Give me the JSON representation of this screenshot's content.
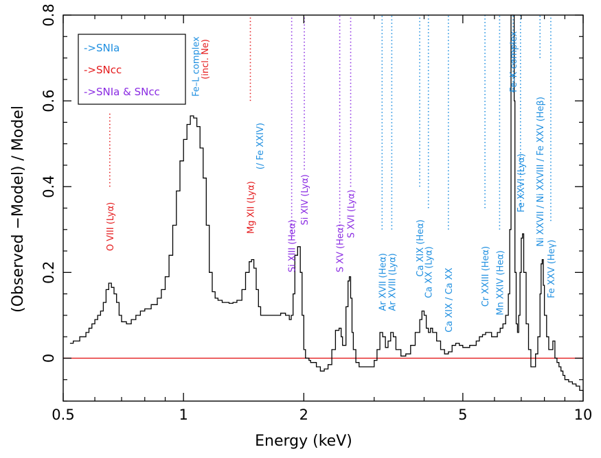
{
  "chart_data": {
    "type": "line",
    "xlabel": "Energy (keV)",
    "ylabel": "(Observed −Model) / Model",
    "x_scale": "log",
    "xlim": [
      0.5,
      10
    ],
    "ylim": [
      -0.1,
      0.8
    ],
    "x_ticks": [
      {
        "value": 0.5,
        "label": "0.5"
      },
      {
        "value": 1,
        "label": "1"
      },
      {
        "value": 2,
        "label": "2"
      },
      {
        "value": 5,
        "label": "5"
      },
      {
        "value": 10,
        "label": "10"
      }
    ],
    "y_ticks": [
      {
        "value": 0,
        "label": "0"
      },
      {
        "value": 0.2,
        "label": "0.2"
      },
      {
        "value": 0.4,
        "label": "0.4"
      },
      {
        "value": 0.6,
        "label": "0.6"
      },
      {
        "value": 0.8,
        "label": "0.8"
      }
    ],
    "zero_line": {
      "y": 0,
      "color": "#e41a1c"
    },
    "colors": {
      "SNIa": "#1f8fe0",
      "SNcc": "#e41a1c",
      "mixed": "#8a2be2",
      "data": "#000000"
    },
    "legend": {
      "placement": "top-left",
      "entries": [
        {
          "label": "->SNIa",
          "group": "SNIa"
        },
        {
          "label": "->SNcc",
          "group": "SNcc"
        },
        {
          "label": "->SNIa & SNcc",
          "group": "mixed"
        }
      ]
    },
    "series": [
      {
        "x": [
          0.52,
          0.53,
          0.55,
          0.57,
          0.58,
          0.59,
          0.6,
          0.61,
          0.62,
          0.63,
          0.64,
          0.65,
          0.66,
          0.67,
          0.68,
          0.69,
          0.7,
          0.72,
          0.74,
          0.76,
          0.78,
          0.8,
          0.83,
          0.86,
          0.88,
          0.9,
          0.92,
          0.94,
          0.96,
          0.98,
          1.0,
          1.02,
          1.04,
          1.06,
          1.08,
          1.1,
          1.12,
          1.14,
          1.16,
          1.18,
          1.2,
          1.22,
          1.25,
          1.28,
          1.3,
          1.33,
          1.36,
          1.4,
          1.43,
          1.46,
          1.48,
          1.5,
          1.52,
          1.54,
          1.56,
          1.6,
          1.65,
          1.7,
          1.75,
          1.8,
          1.84,
          1.86,
          1.88,
          1.9,
          1.93,
          1.96,
          1.98,
          2.0,
          2.02,
          2.04,
          2.06,
          2.08,
          2.1,
          2.15,
          2.2,
          2.25,
          2.3,
          2.35,
          2.4,
          2.45,
          2.48,
          2.5,
          2.55,
          2.58,
          2.6,
          2.62,
          2.64,
          2.66,
          2.7,
          2.75,
          2.8,
          2.9,
          3.0,
          3.05,
          3.1,
          3.15,
          3.2,
          3.25,
          3.3,
          3.35,
          3.4,
          3.5,
          3.6,
          3.7,
          3.8,
          3.9,
          3.95,
          4.0,
          4.05,
          4.1,
          4.15,
          4.2,
          4.3,
          4.4,
          4.5,
          4.6,
          4.7,
          4.8,
          4.9,
          5.0,
          5.2,
          5.4,
          5.5,
          5.6,
          5.7,
          5.8,
          5.9,
          6.0,
          6.1,
          6.2,
          6.3,
          6.4,
          6.5,
          6.55,
          6.6,
          6.65,
          6.7,
          6.72,
          6.75,
          6.8,
          6.85,
          6.9,
          6.95,
          7.0,
          7.05,
          7.1,
          7.2,
          7.3,
          7.4,
          7.5,
          7.6,
          7.7,
          7.8,
          7.85,
          7.9,
          7.95,
          8.0,
          8.1,
          8.2,
          8.3,
          8.4,
          8.5,
          8.6,
          8.7,
          8.8,
          8.9,
          9.0,
          9.2,
          9.4,
          9.6,
          9.8,
          10.0
        ],
        "y": [
          0.035,
          0.04,
          0.05,
          0.06,
          0.07,
          0.08,
          0.09,
          0.1,
          0.11,
          0.13,
          0.16,
          0.175,
          0.165,
          0.15,
          0.13,
          0.1,
          0.085,
          0.08,
          0.09,
          0.1,
          0.11,
          0.115,
          0.125,
          0.14,
          0.16,
          0.19,
          0.24,
          0.31,
          0.39,
          0.46,
          0.51,
          0.545,
          0.565,
          0.56,
          0.54,
          0.49,
          0.42,
          0.31,
          0.2,
          0.155,
          0.14,
          0.135,
          0.13,
          0.13,
          0.128,
          0.13,
          0.135,
          0.16,
          0.2,
          0.225,
          0.23,
          0.21,
          0.16,
          0.12,
          0.1,
          0.1,
          0.1,
          0.1,
          0.105,
          0.1,
          0.09,
          0.1,
          0.15,
          0.24,
          0.26,
          0.2,
          0.1,
          0.02,
          0.0,
          0.0,
          -0.005,
          -0.01,
          -0.01,
          -0.02,
          -0.03,
          -0.025,
          -0.015,
          0.02,
          0.065,
          0.07,
          0.05,
          0.03,
          0.12,
          0.18,
          0.19,
          0.14,
          0.06,
          0.02,
          -0.01,
          -0.02,
          -0.02,
          -0.02,
          -0.005,
          0.02,
          0.06,
          0.05,
          0.025,
          0.04,
          0.06,
          0.05,
          0.02,
          0.005,
          0.01,
          0.03,
          0.06,
          0.09,
          0.11,
          0.1,
          0.07,
          0.06,
          0.07,
          0.06,
          0.04,
          0.02,
          0.01,
          0.015,
          0.03,
          0.035,
          0.03,
          0.025,
          0.03,
          0.04,
          0.05,
          0.055,
          0.06,
          0.06,
          0.05,
          0.05,
          0.06,
          0.07,
          0.08,
          0.1,
          0.15,
          0.3,
          0.8,
          0.8,
          0.8,
          0.6,
          0.2,
          0.08,
          0.06,
          0.1,
          0.2,
          0.28,
          0.29,
          0.2,
          0.08,
          0.02,
          -0.02,
          -0.02,
          0.01,
          0.05,
          0.15,
          0.22,
          0.23,
          0.17,
          0.1,
          0.05,
          0.02,
          0.02,
          0.04,
          0.0,
          -0.01,
          -0.02,
          -0.03,
          -0.04,
          -0.05,
          -0.055,
          -0.06,
          -0.065,
          -0.075,
          -0.08
        ]
      }
    ],
    "annotations": [
      {
        "label": "O VIII (Lyα)",
        "energy": 0.654,
        "group": "SNcc",
        "y_from": 0.4,
        "y_to": 0.575,
        "label_y": 0.25
      },
      {
        "label": "Fe–L complex",
        "energy": null,
        "group": "SNIa",
        "label_energy": 1.07,
        "label_y": 0.61
      },
      {
        "label": "(incl. Ne)",
        "energy": null,
        "group": "SNcc",
        "label_energy": 1.13,
        "label_y": 0.65
      },
      {
        "label": "Mg XII (Lyα)",
        "energy": 1.47,
        "group": "SNcc",
        "y_from": 0.6,
        "y_to": 0.8,
        "label_y": 0.29
      },
      {
        "label": "(/ Fe XXIV)",
        "energy": null,
        "group": "SNIa",
        "label_energy": 1.55,
        "label_y": 0.44
      },
      {
        "label": "Si XIII (Heα)",
        "energy": 1.865,
        "group": "mixed",
        "y_from": 0.28,
        "y_to": 0.8,
        "label_y": 0.2
      },
      {
        "label": "Si XIV (Lyα)",
        "energy": 2.006,
        "group": "mixed",
        "y_from": 0.44,
        "y_to": 0.8,
        "label_y": 0.31
      },
      {
        "label": "S XV (Heα)",
        "energy": 2.46,
        "group": "mixed",
        "y_from": 0.3,
        "y_to": 0.8,
        "label_y": 0.2
      },
      {
        "label": "S XVI (Lyα)",
        "energy": 2.62,
        "group": "mixed",
        "y_from": 0.4,
        "y_to": 0.8,
        "label_y": 0.28
      },
      {
        "label": "Ar XVII (Heα)",
        "energy": 3.14,
        "group": "SNIa",
        "y_from": 0.3,
        "y_to": 0.8,
        "label_y": 0.11
      },
      {
        "label": "Ar XVIII (Lyα)",
        "energy": 3.32,
        "group": "SNIa",
        "y_from": 0.3,
        "y_to": 0.8,
        "label_y": 0.11
      },
      {
        "label": "Ca XIX (Heα)",
        "energy": 3.9,
        "group": "SNIa",
        "y_from": 0.4,
        "y_to": 0.8,
        "label_y": 0.19
      },
      {
        "label": "Ca XX (Lyα)",
        "energy": 4.1,
        "group": "SNIa",
        "y_from": 0.35,
        "y_to": 0.8,
        "label_y": 0.14
      },
      {
        "label": "Ca XIX / Ca XX",
        "energy": 4.6,
        "group": "SNIa",
        "y_from": 0.3,
        "y_to": 0.8,
        "label_y": 0.06
      },
      {
        "label": "Cr XXIII (Heα)",
        "energy": 5.68,
        "group": "SNIa",
        "y_from": 0.35,
        "y_to": 0.8,
        "label_y": 0.12
      },
      {
        "label": "Mn XXIV (Heα)",
        "energy": 6.18,
        "group": "SNIa",
        "y_from": 0.3,
        "y_to": 0.8,
        "label_y": 0.1
      },
      {
        "label": "Fe–K complex",
        "energy": 6.68,
        "group": "SNIa",
        "y_from": 0.62,
        "y_to": 0.8,
        "label_y": 0.62
      },
      {
        "label": "Fe XXVI (Lyα)",
        "energy": 6.97,
        "group": "SNIa",
        "y_from": 0.35,
        "y_to": 0.8,
        "label_y": 0.34
      },
      {
        "label": "Ni XXVII / Ni XXVIII / Fe XXV (Heβ)",
        "energy": 7.8,
        "group": "SNIa",
        "y_from": 0.7,
        "y_to": 0.8,
        "label_y": 0.26
      },
      {
        "label": "Fe XXV (Heγ)",
        "energy": 8.3,
        "group": "SNIa",
        "y_from": 0.32,
        "y_to": 0.8,
        "label_y": 0.14
      }
    ]
  }
}
